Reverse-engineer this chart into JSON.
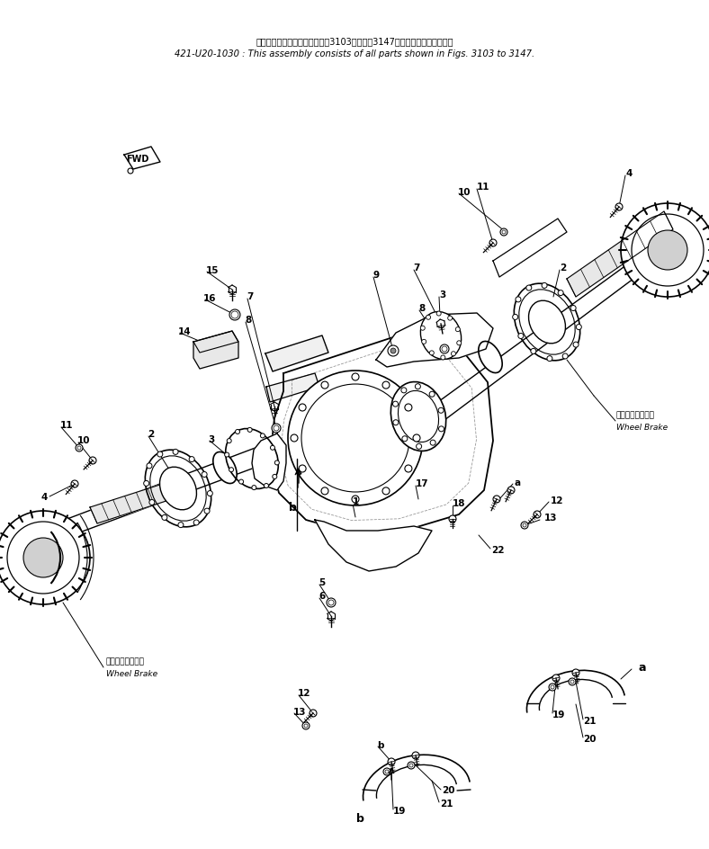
{
  "title_jp": "このアセンブリの構成部品は第3103図から第3147図の品品まで含みます．",
  "title_en": "421-U20-1030 : This assembly consists of all parts shown in Figs. 3103 to 3147.",
  "fwd_label": "FWD",
  "wheel_brake_jp": "ホイールブレーキ",
  "wheel_brake_en": "Wheel Brake",
  "bg_color": "#ffffff",
  "line_color": "#000000",
  "text_color": "#000000"
}
